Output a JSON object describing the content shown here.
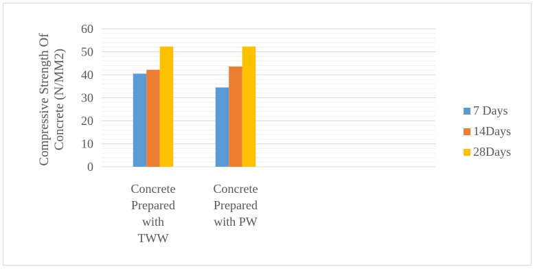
{
  "chart_data": {
    "type": "bar",
    "categories": [
      [
        "Concrete",
        "Prepared",
        "with",
        "TWW"
      ],
      [
        "Concrete",
        "Prepared",
        "with  PW"
      ]
    ],
    "series": [
      {
        "name": "7 Days",
        "color": "#5b9bd5",
        "values": [
          40.5,
          34.5
        ]
      },
      {
        "name": "14Days",
        "color": "#ed7d31",
        "values": [
          42.2,
          43.6
        ]
      },
      {
        "name": "28Days",
        "color": "#ffc000",
        "values": [
          52.3,
          52.3
        ]
      }
    ],
    "ylabel": [
      "Compressive Strength Of",
      "Concrete (N/MM2)"
    ],
    "ylim": [
      0,
      60
    ],
    "yticks": [
      "0",
      "10",
      "20",
      "30",
      "40",
      "50",
      "60"
    ],
    "grid": true,
    "legend_position": "right"
  }
}
